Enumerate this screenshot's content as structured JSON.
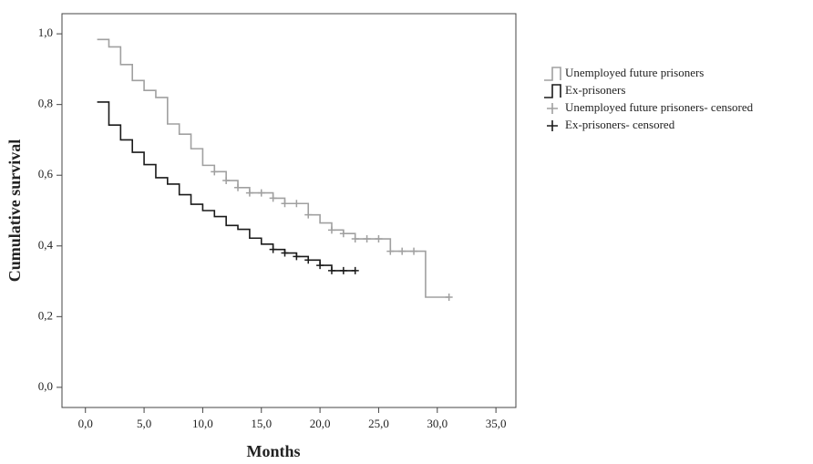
{
  "chart_data": {
    "type": "step",
    "xlabel": "Months",
    "ylabel": "Cumulative survival",
    "xlim": [
      -2,
      36.7
    ],
    "ylim": [
      -0.057,
      1.057
    ],
    "xticks": [
      {
        "value": 0,
        "label": "0,0"
      },
      {
        "value": 5,
        "label": "5,0"
      },
      {
        "value": 10,
        "label": "10,0"
      },
      {
        "value": 15,
        "label": "15,0"
      },
      {
        "value": 20,
        "label": "20,0"
      },
      {
        "value": 25,
        "label": "25,0"
      },
      {
        "value": 30,
        "label": "30,0"
      },
      {
        "value": 35,
        "label": "35,0"
      }
    ],
    "yticks": [
      {
        "value": 0,
        "label": "0,0"
      },
      {
        "value": 0.2,
        "label": "0,2"
      },
      {
        "value": 0.4,
        "label": "0,4"
      },
      {
        "value": 0.6,
        "label": "0,6"
      },
      {
        "value": 0.8,
        "label": "0,8"
      },
      {
        "value": 1,
        "label": "1,0"
      }
    ],
    "legend": "right",
    "series": [
      {
        "name": "Unemployed future prisoners",
        "color": "#a0a0a0",
        "mark": "step",
        "x": [
          1,
          2,
          3,
          4,
          5,
          6,
          7,
          8,
          9,
          10,
          11,
          12,
          13,
          14,
          16,
          17,
          19,
          20,
          21,
          22,
          23,
          26,
          29,
          31
        ],
        "values": [
          0.984,
          0.963,
          0.913,
          0.868,
          0.84,
          0.82,
          0.745,
          0.716,
          0.675,
          0.628,
          0.61,
          0.585,
          0.565,
          0.55,
          0.535,
          0.52,
          0.488,
          0.465,
          0.445,
          0.435,
          0.42,
          0.385,
          0.255,
          0.255
        ]
      },
      {
        "name": "Ex-prisoners",
        "color": "#1a1a1a",
        "mark": "step",
        "x": [
          1,
          2,
          3,
          4,
          5,
          6,
          7,
          8,
          9,
          10,
          11,
          12,
          13,
          14,
          15,
          16,
          17,
          18,
          19,
          20,
          21,
          23
        ],
        "values": [
          0.807,
          0.742,
          0.7,
          0.665,
          0.63,
          0.593,
          0.575,
          0.545,
          0.518,
          0.5,
          0.483,
          0.458,
          0.447,
          0.422,
          0.405,
          0.39,
          0.38,
          0.37,
          0.36,
          0.345,
          0.33,
          0.33
        ]
      },
      {
        "name": "Unemployed future prisoners- censored",
        "color": "#a0a0a0",
        "mark": "plus",
        "x": [
          11,
          12,
          13,
          14,
          15,
          16,
          17,
          18,
          19,
          21,
          22,
          23,
          24,
          25,
          26,
          27,
          28,
          31
        ],
        "values": [
          0.61,
          0.585,
          0.565,
          0.55,
          0.55,
          0.535,
          0.52,
          0.52,
          0.488,
          0.445,
          0.435,
          0.42,
          0.42,
          0.42,
          0.385,
          0.385,
          0.385,
          0.255
        ]
      },
      {
        "name": "Ex-prisoners- censored",
        "color": "#1a1a1a",
        "mark": "plus",
        "x": [
          16,
          17,
          18,
          19,
          20,
          21,
          22,
          23
        ],
        "values": [
          0.39,
          0.38,
          0.37,
          0.36,
          0.345,
          0.33,
          0.33,
          0.33
        ]
      }
    ]
  }
}
